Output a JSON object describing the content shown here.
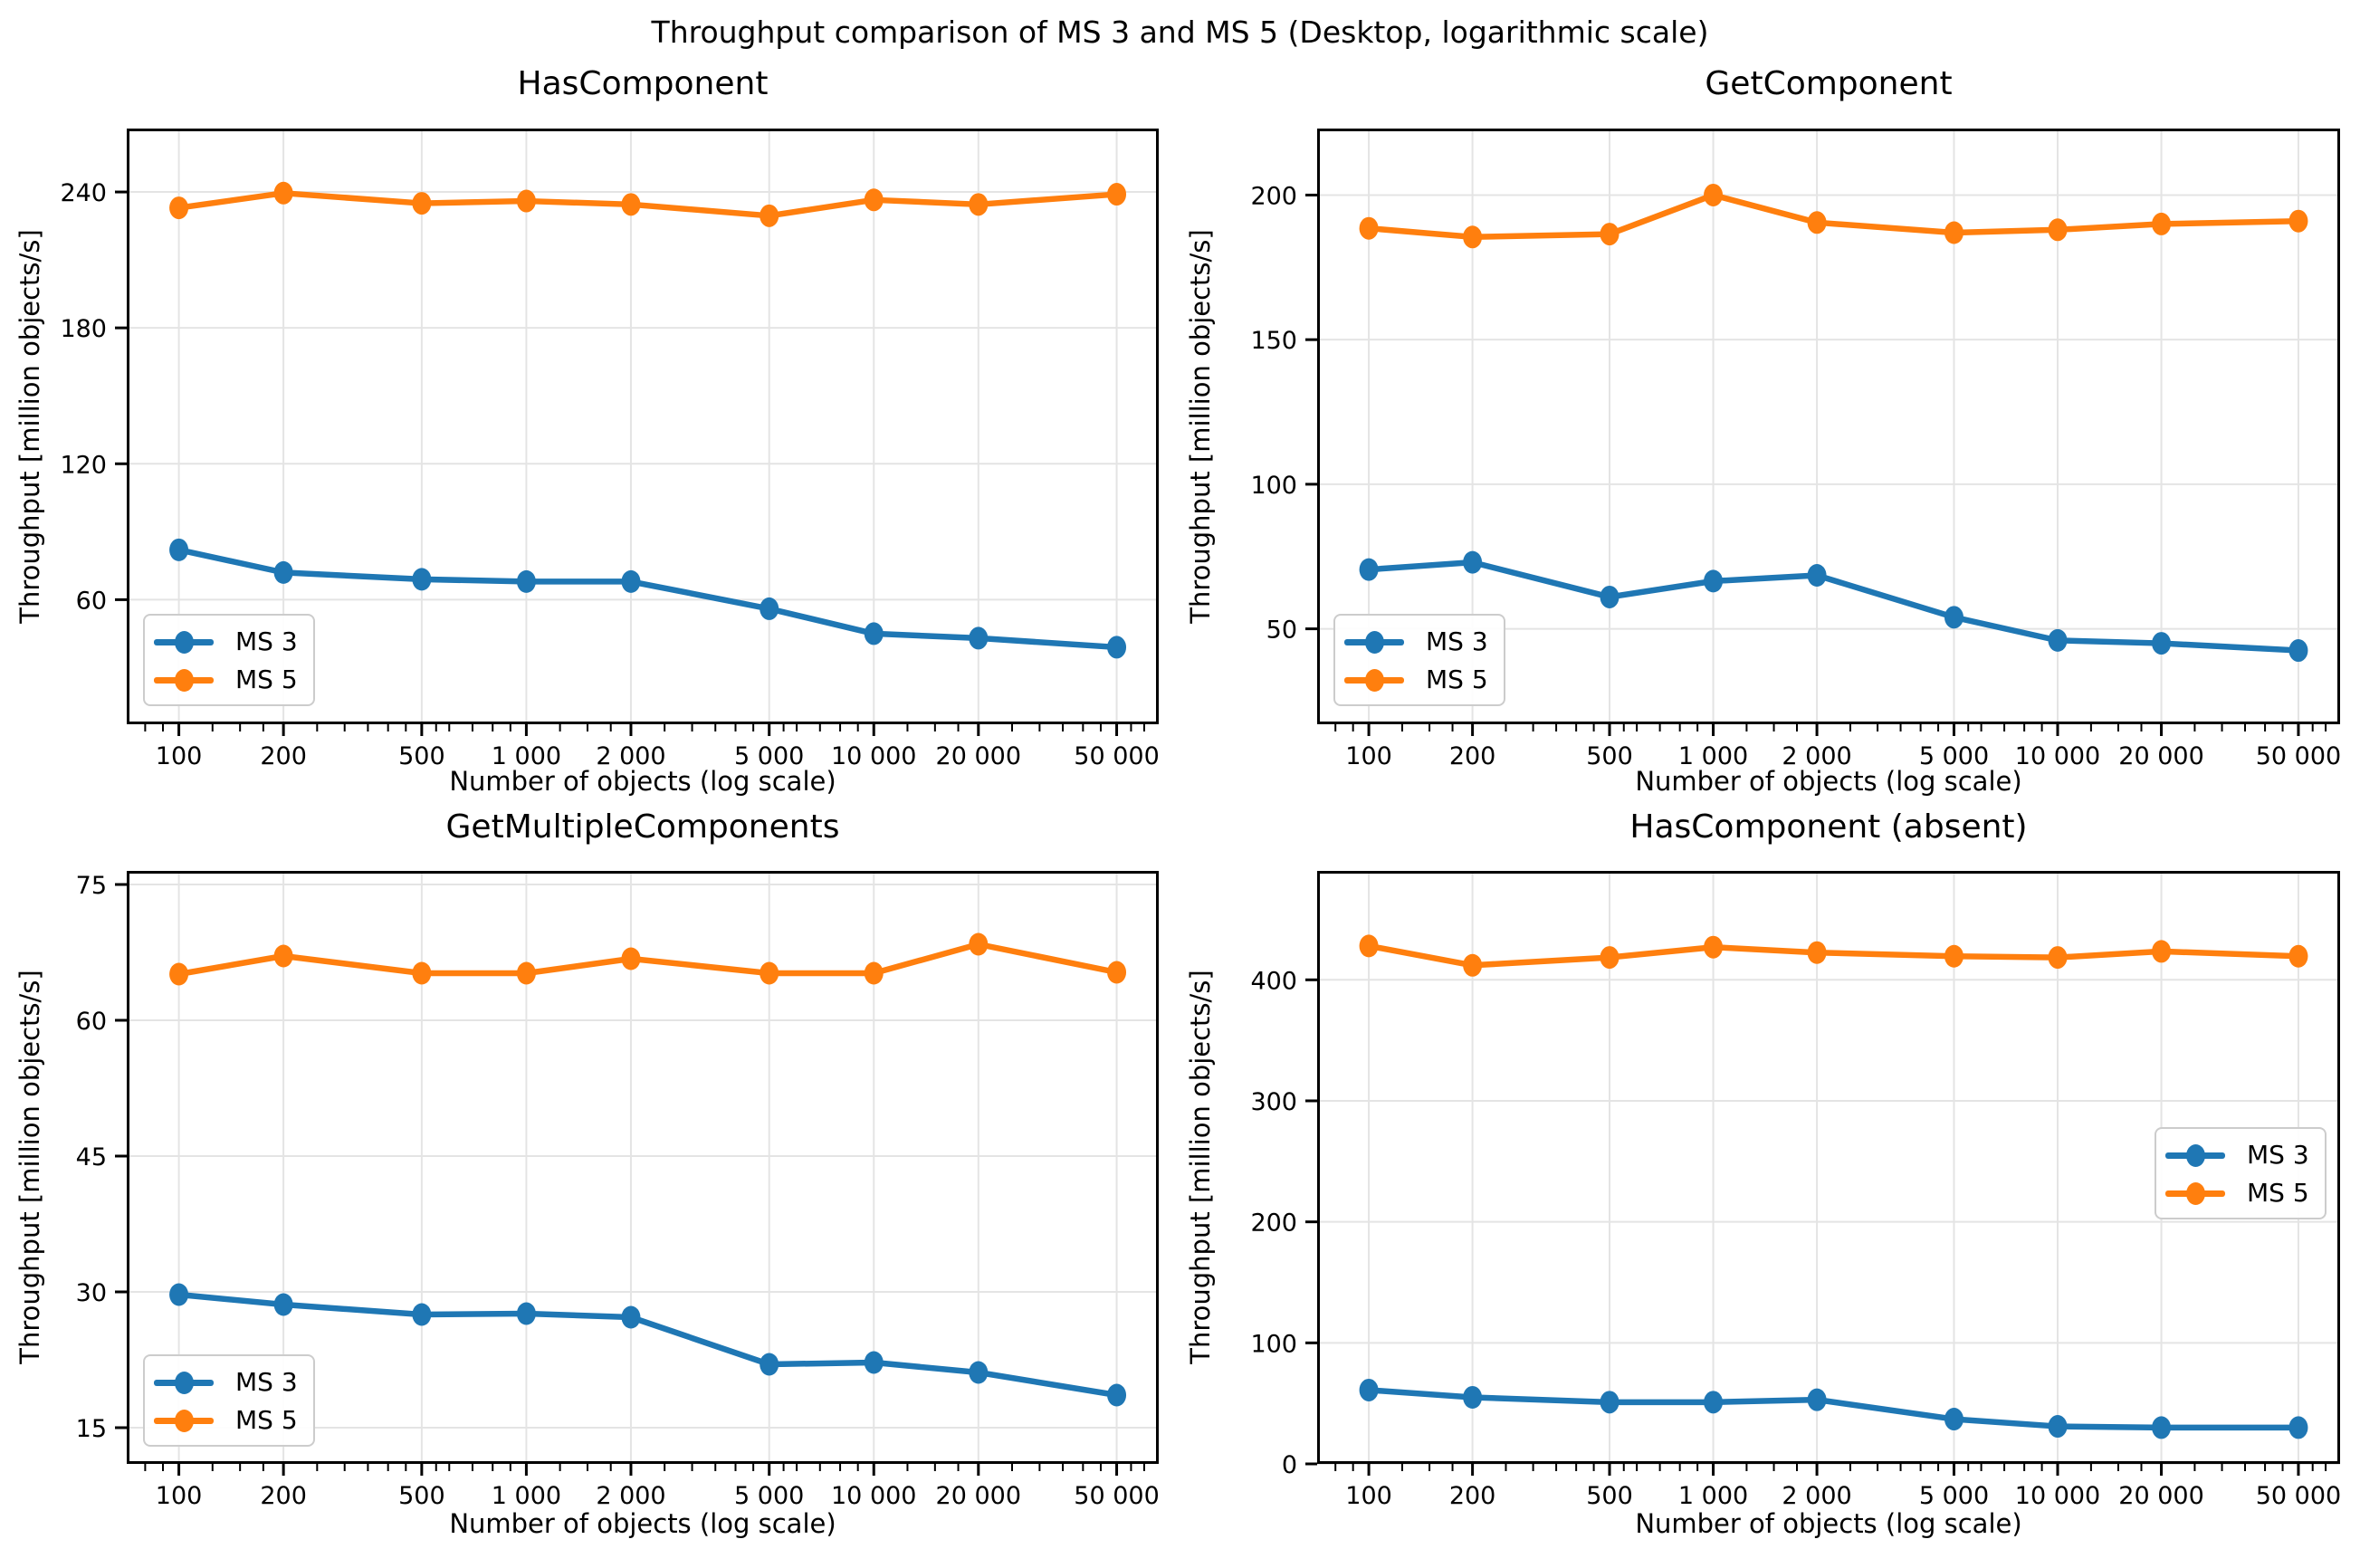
{
  "figure": {
    "title": "Throughput comparison of MS 3 and MS 5 (Desktop, logarithmic scale)"
  },
  "colors": {
    "ms3": "#1f77b4",
    "ms5": "#ff7f0e",
    "grid": "#e4e4e4",
    "spine": "#000000",
    "text": "#000000",
    "legend_border": "#cccccc"
  },
  "x_axis": {
    "label": "Number of objects (log scale)",
    "scale": "log",
    "tick_values": [
      100,
      200,
      500,
      1000,
      2000,
      5000,
      10000,
      20000,
      50000
    ],
    "tick_labels": [
      "100",
      "200",
      "500",
      "1 000",
      "2 000",
      "5 000",
      "10 000",
      "20 000",
      "50 000"
    ],
    "log_range": [
      1.85,
      4.82
    ]
  },
  "y_axis": {
    "label": "Throughput [million objects/s]"
  },
  "legend_labels": {
    "ms3": "MS 3",
    "ms5": "MS 5"
  },
  "chart_data": [
    {
      "type": "line",
      "title": "HasComponent",
      "xscale": "log",
      "x": [
        100,
        200,
        500,
        1000,
        2000,
        5000,
        10000,
        20000,
        50000
      ],
      "series": [
        {
          "name": "MS 3",
          "color": "ms3",
          "values": [
            82,
            72,
            69,
            68,
            68,
            56,
            45,
            43,
            39
          ]
        },
        {
          "name": "MS 5",
          "color": "ms5",
          "values": [
            233,
            239.5,
            235,
            236,
            234.5,
            229.5,
            236.5,
            234.5,
            239
          ]
        }
      ],
      "ylim": [
        5,
        268
      ],
      "yticks": [
        60,
        120,
        180,
        240
      ],
      "legend_position": "lower-left",
      "grid": true
    },
    {
      "type": "line",
      "title": "GetComponent",
      "xscale": "log",
      "x": [
        100,
        200,
        500,
        1000,
        2000,
        5000,
        10000,
        20000,
        50000
      ],
      "series": [
        {
          "name": "MS 3",
          "color": "ms3",
          "values": [
            70.5,
            73,
            61,
            66.5,
            68.5,
            54,
            46,
            45,
            42.5
          ]
        },
        {
          "name": "MS 5",
          "color": "ms5",
          "values": [
            188.5,
            185.5,
            186.5,
            200,
            190.5,
            187,
            188,
            190,
            191
          ]
        }
      ],
      "ylim": [
        17,
        223
      ],
      "yticks": [
        50,
        100,
        150,
        200
      ],
      "legend_position": "lower-left",
      "grid": true
    },
    {
      "type": "line",
      "title": "GetMultipleComponents",
      "xscale": "log",
      "x": [
        100,
        200,
        500,
        1000,
        2000,
        5000,
        10000,
        20000,
        50000
      ],
      "series": [
        {
          "name": "MS 3",
          "color": "ms3",
          "values": [
            29.7,
            28.6,
            27.5,
            27.6,
            27.2,
            22,
            22.2,
            21.1,
            18.6
          ]
        },
        {
          "name": "MS 5",
          "color": "ms5",
          "values": [
            65.1,
            67.1,
            65.2,
            65.2,
            66.8,
            65.2,
            65.2,
            68.4,
            65.3
          ]
        }
      ],
      "ylim": [
        11,
        76.5
      ],
      "yticks": [
        15,
        30,
        45,
        60,
        75
      ],
      "legend_position": "lower-left",
      "grid": true
    },
    {
      "type": "line",
      "title": "HasComponent (absent)",
      "xscale": "log",
      "x": [
        100,
        200,
        500,
        1000,
        2000,
        5000,
        10000,
        20000,
        50000
      ],
      "series": [
        {
          "name": "MS 3",
          "color": "ms3",
          "values": [
            61,
            55,
            51,
            51,
            53,
            37,
            31,
            30,
            30
          ]
        },
        {
          "name": "MS 5",
          "color": "ms5",
          "values": [
            428,
            412,
            418.5,
            427,
            422.5,
            419.5,
            418.5,
            423.5,
            419.5
          ]
        }
      ],
      "ylim": [
        0,
        490
      ],
      "yticks": [
        0,
        100,
        200,
        300,
        400
      ],
      "legend_position": "center-right",
      "grid": true
    }
  ]
}
